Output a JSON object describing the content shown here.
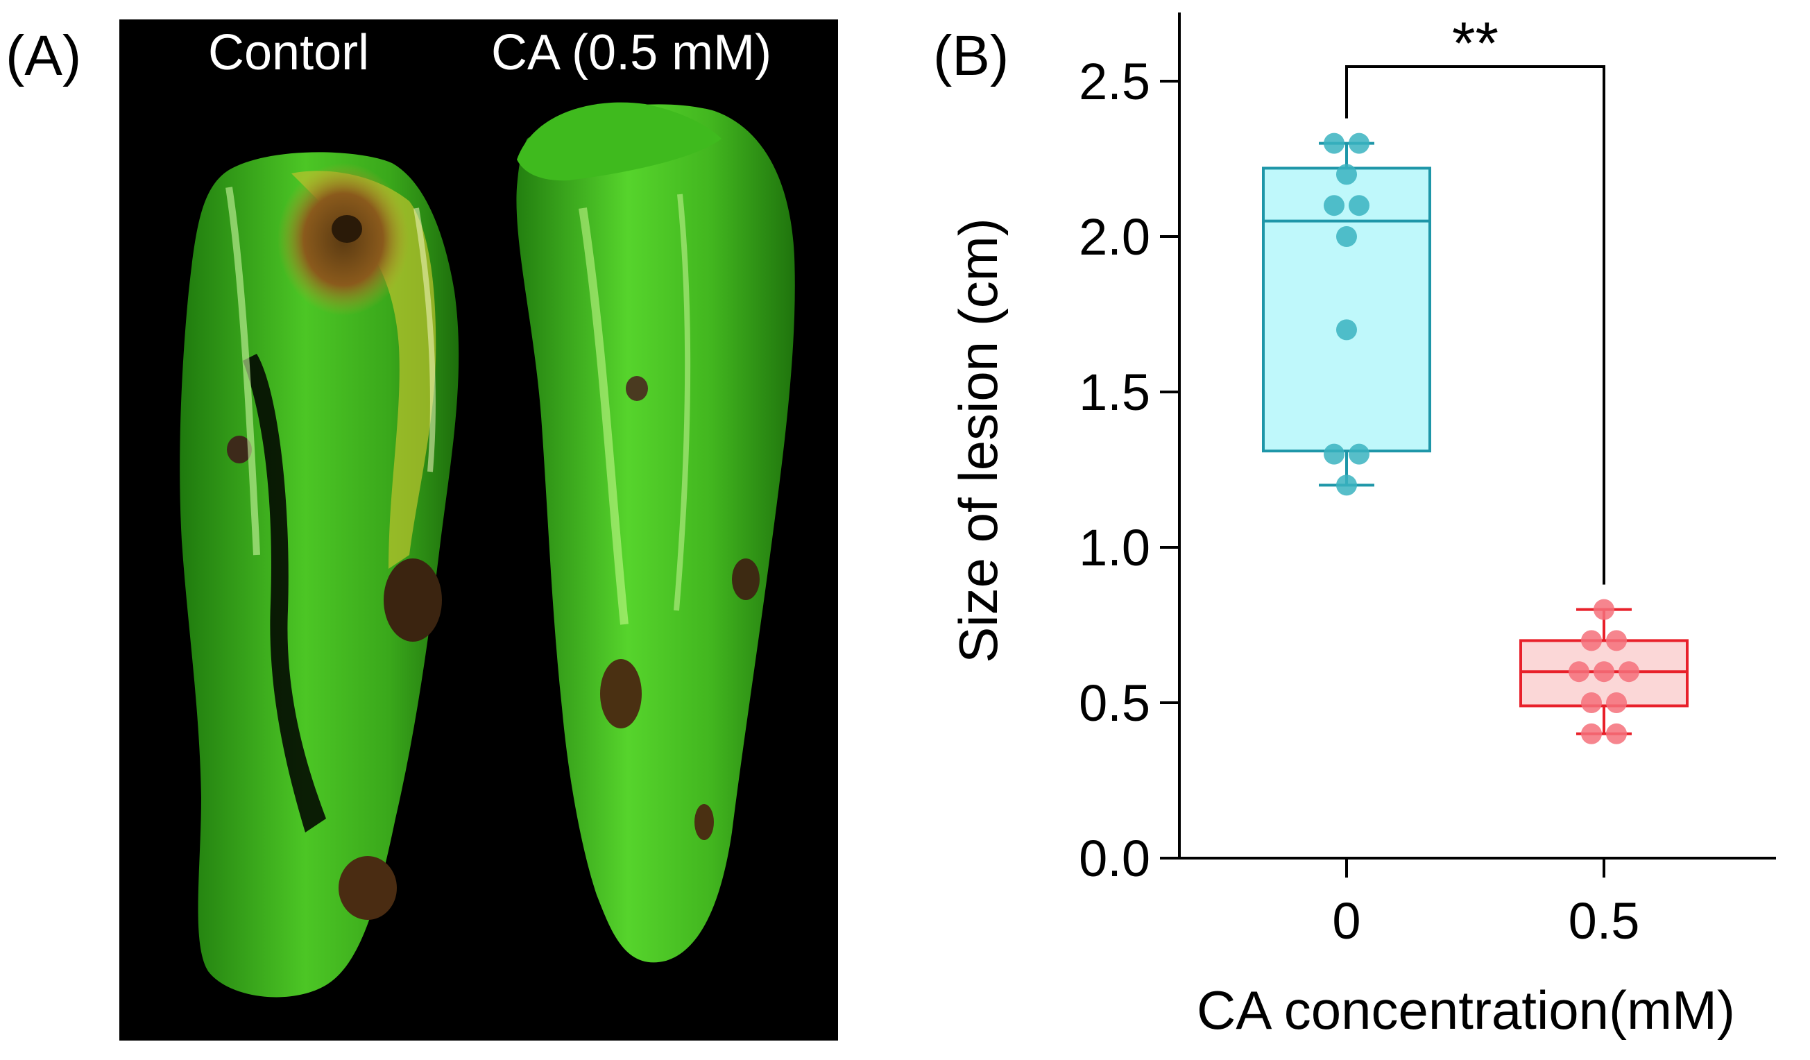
{
  "panel_a": {
    "label": "(A)",
    "control_label": "Contorl",
    "treatment_label": "CA (0.5 mM)"
  },
  "panel_b": {
    "label": "(B)",
    "significance": "**"
  },
  "colors": {
    "control_stroke": "#1e96a8",
    "control_fill": "#b8f7fb",
    "control_point": "#3ab3c0",
    "treat_stroke": "#e8202a",
    "treat_fill": "#fbd3d3",
    "treat_point": "#f5707a",
    "pepper_green": "#3fb81f",
    "photo_bg": "#000000"
  },
  "chart_data": {
    "type": "box",
    "xlabel": "CA concentration(mM)",
    "ylabel": "Size of lesion (cm)",
    "ylim": [
      0.0,
      2.5
    ],
    "yticks": [
      "0.0",
      "0.5",
      "1.0",
      "1.5",
      "2.0",
      "2.5"
    ],
    "categories": [
      "0",
      "0.5"
    ],
    "grid": false,
    "series": [
      {
        "category": "0",
        "whisker_low": 1.2,
        "q1": 1.31,
        "median": 2.05,
        "q3": 2.22,
        "whisker_high": 2.3,
        "points": [
          2.3,
          2.3,
          2.2,
          2.1,
          2.1,
          2.0,
          1.7,
          1.3,
          1.3,
          1.2
        ]
      },
      {
        "category": "0.5",
        "whisker_low": 0.4,
        "q1": 0.49,
        "median": 0.6,
        "q3": 0.7,
        "whisker_high": 0.8,
        "points": [
          0.8,
          0.7,
          0.7,
          0.6,
          0.6,
          0.6,
          0.5,
          0.5,
          0.4,
          0.4
        ]
      }
    ],
    "annotations": [
      {
        "text": "**",
        "between": [
          "0",
          "0.5"
        ]
      }
    ]
  }
}
